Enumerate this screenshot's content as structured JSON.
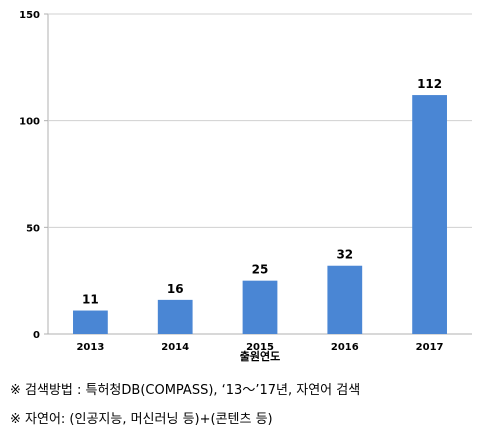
{
  "chart_data": {
    "type": "bar",
    "categories": [
      "2013",
      "2014",
      "2015",
      "2016",
      "2017"
    ],
    "values": [
      11,
      16,
      25,
      32,
      112
    ],
    "data_labels": [
      "11",
      "16",
      "25",
      "32",
      "112"
    ],
    "xlabel": "출원연도",
    "ylabel": "",
    "ylim": [
      0,
      150
    ],
    "yticks": [
      0,
      50,
      100,
      150
    ],
    "grid": true,
    "bar_color": "#4a86d4",
    "grid_color": "#d0d0d0"
  },
  "notes": [
    "※ 검색방법 : 특허청DB(COMPASS), ‘13～’17년, 자연어 검색",
    "※ 자연어: (인공지능, 머신러닝 등)+(콘텐츠 등)"
  ]
}
